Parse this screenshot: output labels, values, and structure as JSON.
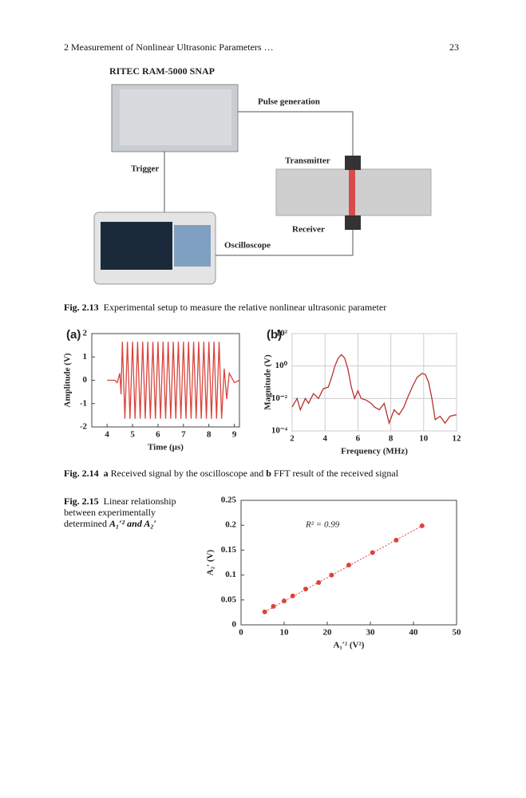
{
  "header": {
    "chapter": "2 Measurement of Nonlinear Ultrasonic Parameters …",
    "page": "23"
  },
  "diagram": {
    "device": "RITEC RAM-5000 SNAP",
    "pulse": "Pulse generation",
    "trigger": "Trigger",
    "transmitter": "Transmitter",
    "receiver": "Receiver",
    "oscilloscope": "Oscilloscope"
  },
  "captions": [
    {
      "label": "Fig. 2.13",
      "text": "Experimental setup to measure the relative nonlinear ultrasonic parameter"
    },
    {
      "label": "Fig. 2.14",
      "a": "a",
      "text_a": "Received signal by the oscilloscope and",
      "b": "b",
      "text_b": "FFT result of the received signal"
    },
    {
      "label": "Fig. 2.15",
      "text": "Linear relationship between experimentally determined",
      "math": "A₁′² and A₂′"
    }
  ],
  "chart_data": [
    {
      "type": "line",
      "panel": "(a)",
      "xlabel": "Time (µs)",
      "ylabel": "Amplitude (V)",
      "color": "#d9443c",
      "xlim": [
        3.4,
        9.2
      ],
      "ylim": [
        -2,
        2
      ],
      "xticks": [
        4,
        5,
        6,
        7,
        8,
        9
      ],
      "yticks": [
        -2,
        -1,
        0,
        1,
        2
      ],
      "grid": false,
      "x": [
        4.0,
        4.3,
        4.4,
        4.5,
        4.55,
        4.6,
        4.7,
        4.8,
        4.9,
        5.0,
        5.1,
        5.2,
        5.3,
        5.4,
        5.5,
        5.6,
        5.7,
        5.8,
        5.9,
        6.0,
        6.1,
        6.2,
        6.3,
        6.4,
        6.5,
        6.6,
        6.7,
        6.8,
        6.9,
        7.0,
        7.1,
        7.2,
        7.3,
        7.4,
        7.5,
        7.6,
        7.7,
        7.8,
        7.9,
        8.0,
        8.1,
        8.2,
        8.3,
        8.4,
        8.5,
        8.6,
        8.7,
        8.8,
        9.0,
        9.2
      ],
      "values": [
        0,
        0,
        -0.1,
        0.3,
        -0.6,
        1.65,
        -1.65,
        1.65,
        -1.65,
        1.65,
        -1.65,
        1.65,
        -1.65,
        1.65,
        -1.65,
        1.65,
        -1.65,
        1.65,
        -1.65,
        1.65,
        -1.65,
        1.65,
        -1.65,
        1.65,
        -1.65,
        1.65,
        -1.65,
        1.65,
        -1.65,
        1.65,
        -1.65,
        1.65,
        -1.65,
        1.65,
        -1.65,
        1.65,
        -1.65,
        1.65,
        -1.65,
        1.65,
        -1.65,
        1.65,
        -1.65,
        1.65,
        -1.65,
        0.5,
        -0.8,
        0.3,
        -0.1,
        0
      ]
    },
    {
      "type": "line",
      "panel": "(b)",
      "xlabel": "Frequency (MHz)",
      "ylabel": "Magnitude (V)",
      "color": "#b5312c",
      "log_y": true,
      "xlim": [
        2,
        12
      ],
      "ylim": [
        0.0001,
        100
      ],
      "xticks": [
        2,
        4,
        6,
        8,
        10,
        12
      ],
      "yticks": [
        {
          "value": 0.0001,
          "label": "10⁻⁴"
        },
        {
          "value": 0.01,
          "label": "10⁻²"
        },
        {
          "value": 1,
          "label": "10⁰"
        },
        {
          "value": 100,
          "label": "10²"
        }
      ],
      "grid": true,
      "x": [
        2.0,
        2.3,
        2.5,
        2.8,
        3.0,
        3.3,
        3.6,
        3.9,
        4.2,
        4.4,
        4.6,
        4.8,
        5.0,
        5.2,
        5.4,
        5.6,
        5.8,
        6.0,
        6.2,
        6.5,
        6.8,
        7.0,
        7.3,
        7.6,
        7.9,
        8.2,
        8.5,
        8.8,
        9.0,
        9.3,
        9.6,
        9.9,
        10.1,
        10.3,
        10.5,
        10.7,
        11.0,
        11.3,
        11.6,
        12.0
      ],
      "values": [
        0.003,
        0.01,
        0.002,
        0.01,
        0.005,
        0.02,
        0.01,
        0.04,
        0.05,
        0.2,
        1,
        3,
        5,
        3,
        0.6,
        0.05,
        0.01,
        0.03,
        0.01,
        0.008,
        0.005,
        0.003,
        0.002,
        0.005,
        0.0003,
        0.002,
        0.001,
        0.003,
        0.01,
        0.05,
        0.2,
        0.35,
        0.3,
        0.1,
        0.01,
        0.0005,
        0.0008,
        0.0003,
        0.0008,
        0.001
      ]
    },
    {
      "type": "scatter",
      "xlabel": "A₁′² (V²)",
      "ylabel": "A₂′ (V)",
      "annotation": "R² = 0.99",
      "color": "#d9443c",
      "xlim": [
        0,
        50
      ],
      "ylim": [
        0,
        0.25
      ],
      "xticks": [
        0,
        10,
        20,
        30,
        40,
        50
      ],
      "yticks": [
        0,
        0.05,
        0.1,
        0.15,
        0.2,
        0.25
      ],
      "grid": false,
      "x": [
        5.5,
        7.5,
        10,
        12,
        15,
        18,
        21,
        25,
        30.5,
        36,
        42
      ],
      "values": [
        0.026,
        0.037,
        0.048,
        0.058,
        0.072,
        0.085,
        0.1,
        0.12,
        0.145,
        0.17,
        0.199
      ]
    }
  ]
}
